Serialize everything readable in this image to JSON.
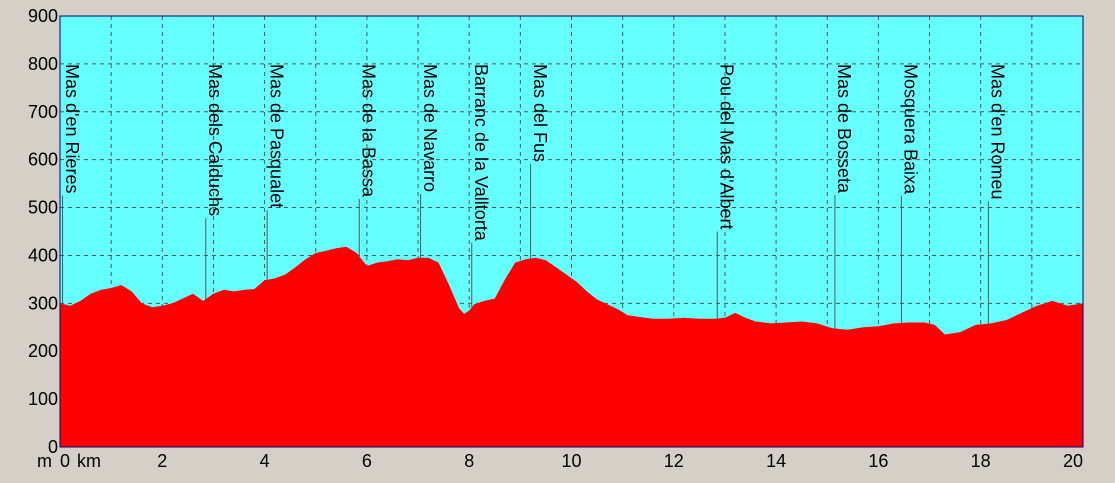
{
  "chart_data": {
    "type": "area",
    "title": "",
    "x_unit": "km",
    "y_unit": "m",
    "xlim": [
      0,
      20
    ],
    "ylim": [
      0,
      900
    ],
    "grid": true,
    "colors": {
      "background": "#66ffff",
      "fill": "#ff0000",
      "grid": "#555555",
      "frame": "#000080",
      "canvas": "#d4d0c8"
    },
    "x_ticks": [
      0,
      2,
      4,
      6,
      8,
      10,
      12,
      14,
      16,
      18,
      20
    ],
    "y_ticks": [
      0,
      100,
      200,
      300,
      400,
      500,
      600,
      700,
      800,
      900
    ],
    "profile": {
      "x": [
        0,
        0.2,
        0.4,
        0.6,
        0.8,
        1.0,
        1.2,
        1.4,
        1.6,
        1.8,
        2.0,
        2.2,
        2.4,
        2.6,
        2.8,
        3.0,
        3.2,
        3.4,
        3.6,
        3.8,
        4.0,
        4.2,
        4.4,
        4.6,
        4.8,
        5.0,
        5.2,
        5.4,
        5.6,
        5.8,
        6.0,
        6.2,
        6.4,
        6.6,
        6.8,
        7.0,
        7.2,
        7.4,
        7.6,
        7.8,
        7.9,
        8.0,
        8.1,
        8.3,
        8.5,
        8.7,
        8.9,
        9.1,
        9.3,
        9.5,
        9.7,
        9.9,
        10.1,
        10.3,
        10.5,
        10.7,
        10.9,
        11.1,
        11.3,
        11.6,
        11.9,
        12.2,
        12.5,
        12.8,
        13.0,
        13.2,
        13.4,
        13.6,
        13.9,
        14.2,
        14.5,
        14.8,
        15.1,
        15.4,
        15.7,
        16.0,
        16.3,
        16.6,
        16.9,
        17.1,
        17.3,
        17.6,
        17.9,
        18.2,
        18.5,
        18.8,
        19.1,
        19.4,
        19.7,
        20.0
      ],
      "y": [
        300,
        295,
        305,
        320,
        328,
        332,
        338,
        325,
        300,
        292,
        295,
        300,
        310,
        320,
        305,
        320,
        328,
        325,
        328,
        330,
        348,
        352,
        360,
        375,
        392,
        405,
        410,
        415,
        418,
        405,
        378,
        385,
        388,
        392,
        390,
        395,
        395,
        385,
        340,
        290,
        278,
        285,
        298,
        305,
        310,
        350,
        385,
        392,
        395,
        390,
        375,
        360,
        345,
        325,
        308,
        298,
        288,
        275,
        272,
        268,
        268,
        270,
        268,
        268,
        270,
        280,
        270,
        262,
        258,
        260,
        262,
        258,
        248,
        245,
        250,
        252,
        258,
        260,
        260,
        255,
        235,
        240,
        255,
        258,
        265,
        280,
        295,
        305,
        295,
        300
      ]
    },
    "annotations": [
      {
        "label": "Mas d'en Rieres",
        "x": 0.05,
        "y": 300
      },
      {
        "label": "Mas dels Calduchs",
        "x": 2.85,
        "y": 315
      },
      {
        "label": "Mas de Pasqualet",
        "x": 4.05,
        "y": 345
      },
      {
        "label": "Mas de la Bassa",
        "x": 5.85,
        "y": 410
      },
      {
        "label": "Mas de Navarro",
        "x": 7.05,
        "y": 395
      },
      {
        "label": "Barranc de la Valltorta",
        "x": 8.05,
        "y": 290
      },
      {
        "label": "Mas del Fus",
        "x": 9.2,
        "y": 392
      },
      {
        "label": "Pou del Mas d'Albert",
        "x": 12.85,
        "y": 268
      },
      {
        "label": "Mas de Bosseta",
        "x": 15.15,
        "y": 248
      },
      {
        "label": "Mosquera Baixa",
        "x": 16.45,
        "y": 258
      },
      {
        "label": "Mas d'en Romeu",
        "x": 18.15,
        "y": 258
      }
    ]
  }
}
